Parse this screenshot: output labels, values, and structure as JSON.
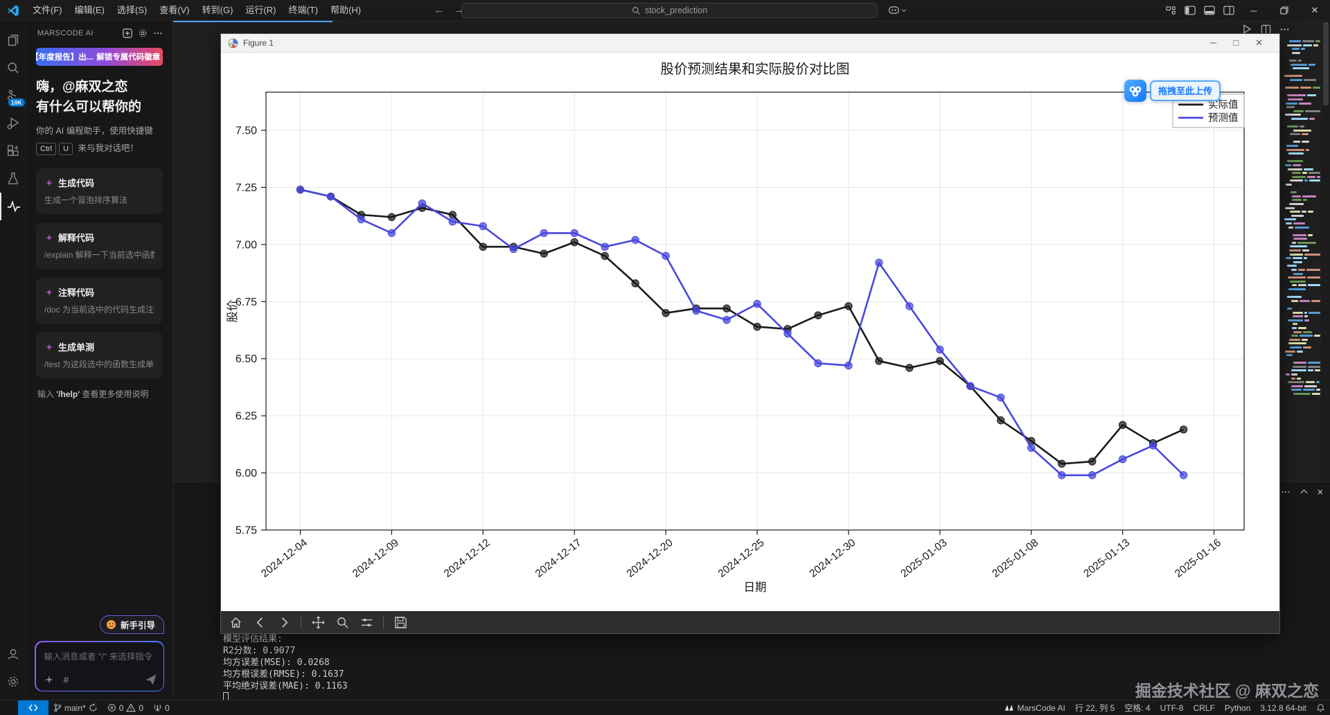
{
  "title_bar": {
    "menus": [
      "文件(F)",
      "编辑(E)",
      "选择(S)",
      "查看(V)",
      "转到(G)",
      "运行(R)",
      "终端(T)",
      "帮助(H)"
    ],
    "search_text": "stock_prediction"
  },
  "activity_bar": {
    "badge": "10K"
  },
  "sidebar": {
    "header": "MARSCODE AI",
    "banner_left": "【年度报告】出...",
    "banner_right": "解锁专属代码徽章→",
    "greeting_line1": "嗨，@麻双之恋",
    "greeting_line2": "有什么可以帮你的",
    "subtitle_line1": "你的 AI 编程助手，使用快捷键",
    "kbd1": "Ctrl",
    "kbd2": "U",
    "subtitle_line2": "来与我对话吧！",
    "cards": [
      {
        "title": "生成代码",
        "desc": "生成一个冒泡排序算法"
      },
      {
        "title": "解释代码",
        "desc": "/explain 解释一下当前选中函数的功..."
      },
      {
        "title": "注释代码",
        "desc": "/doc 为当前选中的代码生成注释"
      },
      {
        "title": "生成单测",
        "desc": "/test 为这段选中的函数生成单测"
      }
    ],
    "help_hint_prefix": "输入 ",
    "help_hint_cmd": "'/help'",
    "help_hint_suffix": " 查看更多使用说明",
    "guide_button": "新手引导",
    "input_placeholder": "输入消息或者 \"/\" 来选择指令"
  },
  "figure": {
    "window_title": "Figure 1",
    "upload_label": "拖拽至此上传"
  },
  "chart_data": {
    "type": "line",
    "title": "股价预测结果和实际股价对比图",
    "xlabel": "日期",
    "ylabel": "股价",
    "grid": true,
    "legend_position": "upper right",
    "ylim": [
      5.69,
      7.64
    ],
    "y_ticks": [
      7.5,
      7.25,
      7.0,
      6.75,
      6.5,
      6.25,
      6.0,
      5.75
    ],
    "y_tick_labels": [
      "7.50",
      "7.25",
      "7.00",
      "6.75",
      "6.50",
      "6.25",
      "6.00",
      "5.75"
    ],
    "x_tick_labels": [
      "2024-12-04",
      "2024-12-09",
      "2024-12-12",
      "2024-12-17",
      "2024-12-20",
      "2024-12-25",
      "2024-12-30",
      "2025-01-03",
      "2025-01-08",
      "2025-01-13",
      "2025-01-16"
    ],
    "dates": [
      "2024-12-04",
      "2024-12-05",
      "2024-12-06",
      "2024-12-09",
      "2024-12-10",
      "2024-12-11",
      "2024-12-12",
      "2024-12-13",
      "2024-12-16",
      "2024-12-17",
      "2024-12-18",
      "2024-12-19",
      "2024-12-20",
      "2024-12-23",
      "2024-12-24",
      "2024-12-25",
      "2024-12-26",
      "2024-12-27",
      "2024-12-30",
      "2024-12-31",
      "2025-01-02",
      "2025-01-03",
      "2025-01-06",
      "2025-01-07",
      "2025-01-08",
      "2025-01-09",
      "2025-01-10",
      "2025-01-13",
      "2025-01-14",
      "2025-01-15"
    ],
    "series": [
      {
        "name": "实际值",
        "color": "#1a1a1a",
        "values": [
          7.24,
          7.21,
          7.13,
          7.12,
          7.16,
          7.13,
          6.99,
          6.99,
          6.96,
          7.01,
          6.95,
          6.83,
          6.7,
          6.72,
          6.72,
          6.64,
          6.63,
          6.69,
          6.73,
          6.49,
          6.46,
          6.49,
          6.38,
          6.23,
          6.14,
          6.04,
          6.05,
          6.21,
          6.13,
          6.19
        ]
      },
      {
        "name": "预测值",
        "color": "#4747de",
        "values": [
          7.24,
          7.21,
          7.11,
          7.05,
          7.18,
          7.1,
          7.08,
          6.98,
          7.05,
          7.05,
          6.99,
          7.02,
          6.95,
          6.71,
          6.67,
          6.74,
          6.61,
          6.48,
          6.47,
          6.92,
          6.73,
          6.54,
          6.38,
          6.33,
          6.11,
          5.99,
          5.99,
          6.06,
          6.12,
          5.99
        ]
      }
    ]
  },
  "terminal": {
    "lines": [
      "模型评估结果:",
      "R2分数: 0.9077",
      "均方误差(MSE): 0.0268",
      "均方根误差(RMSE): 0.1637",
      "平均绝对误差(MAE): 0.1163"
    ]
  },
  "status_bar": {
    "branch": "main*",
    "errors": "0",
    "warnings": "0",
    "ports": "0",
    "ai": "MarsCode AI",
    "cursor": "行 22, 列 5",
    "indent": "空格: 4",
    "encoding": "UTF-8",
    "eol": "CRLF",
    "language": "Python",
    "interpreter": "3.12.8 64-bit"
  },
  "watermark": "掘金技术社区 @ 麻双之恋"
}
